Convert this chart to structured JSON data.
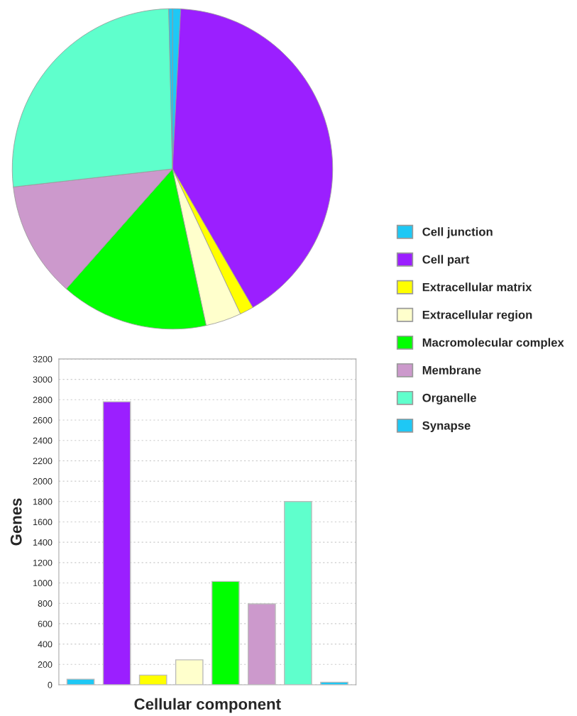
{
  "chart_data": [
    {
      "type": "pie",
      "categories": [
        "Cell junction",
        "Cell part",
        "Extracellular matrix",
        "Extracellular region",
        "Macromolecular complex",
        "Membrane",
        "Organelle",
        "Synapse"
      ],
      "values": [
        0.82,
        40.82,
        1.39,
        3.6,
        14.9,
        11.67,
        26.43,
        0.37
      ],
      "colors": [
        "#1ec8f5",
        "#9b1fff",
        "#ffff00",
        "#ffffcc",
        "#00ff00",
        "#cc99cc",
        "#5fffcc",
        "#1ec8f5"
      ],
      "legend": "right"
    },
    {
      "type": "bar",
      "categories": [
        null,
        null,
        null,
        null,
        null,
        null,
        null,
        null
      ],
      "values": [
        55,
        2780,
        95,
        245,
        1015,
        795,
        1800,
        25
      ],
      "colors": [
        "#1ec8f5",
        "#9b1fff",
        "#ffff00",
        "#ffffcc",
        "#00ff00",
        "#cc99cc",
        "#5fffcc",
        "#1ec8f5"
      ],
      "xlabel": "Cellular component",
      "ylabel": "Genes",
      "ylim": [
        0,
        3200
      ],
      "yticks": [
        0,
        200,
        400,
        600,
        800,
        1000,
        1200,
        1400,
        1600,
        1800,
        2000,
        2200,
        2400,
        2600,
        2800,
        3000,
        3200
      ],
      "grid": "y"
    }
  ]
}
